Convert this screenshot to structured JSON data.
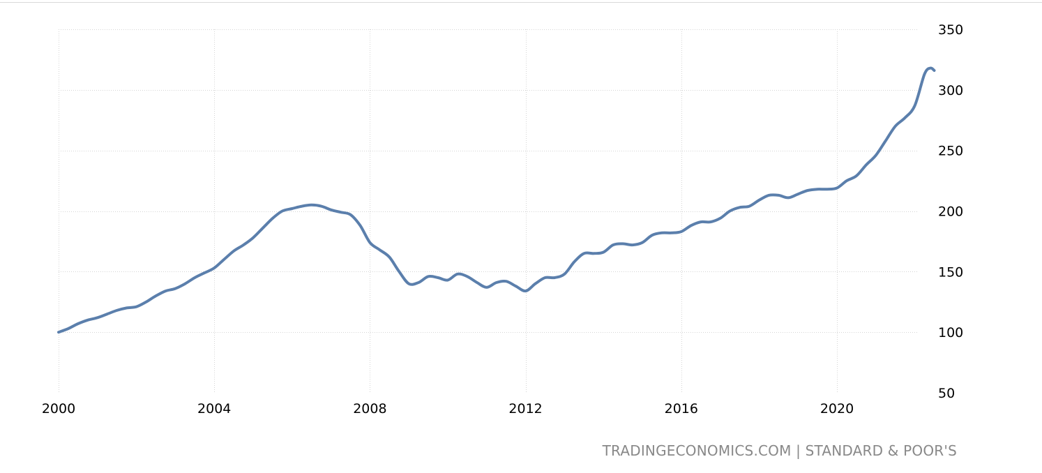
{
  "source": "TRADINGECONOMICS.COM | STANDARD & POOR'S",
  "chart_data": {
    "type": "line",
    "title": "",
    "xlabel": "",
    "ylabel": "",
    "xlim": [
      2000,
      2024.5
    ],
    "ylim": [
      50,
      350
    ],
    "x_ticks": [
      2000,
      2004,
      2008,
      2012,
      2016,
      2020
    ],
    "x_tick_labels": [
      "2000",
      "2004",
      "2008",
      "2012",
      "2016",
      "2020"
    ],
    "y_ticks": [
      50,
      100,
      150,
      200,
      250,
      300,
      350
    ],
    "y_tick_labels": [
      "50",
      "100",
      "150",
      "200",
      "250",
      "300",
      "350"
    ],
    "y_axis_position": "right",
    "grid": true,
    "legend": "none",
    "line_color": "#5b7fac",
    "series": [
      {
        "x": [
          2000.0,
          2000.25,
          2000.5,
          2000.75,
          2001.0,
          2001.25,
          2001.5,
          2001.75,
          2002.0,
          2002.25,
          2002.5,
          2002.75,
          2003.0,
          2003.25,
          2003.5,
          2003.75,
          2004.0,
          2004.25,
          2004.5,
          2004.75,
          2005.0,
          2005.25,
          2005.5,
          2005.75,
          2006.0,
          2006.25,
          2006.5,
          2006.75,
          2007.0,
          2007.25,
          2007.5,
          2007.75,
          2008.0,
          2008.25,
          2008.5,
          2008.75,
          2009.0,
          2009.25,
          2009.5,
          2009.75,
          2010.0,
          2010.25,
          2010.5,
          2010.75,
          2011.0,
          2011.25,
          2011.5,
          2011.75,
          2012.0,
          2012.25,
          2012.5,
          2012.75,
          2013.0,
          2013.25,
          2013.5,
          2013.75,
          2014.0,
          2014.25,
          2014.5,
          2014.75,
          2015.0,
          2015.25,
          2015.5,
          2015.75,
          2016.0,
          2016.25,
          2016.5,
          2016.75,
          2017.0,
          2017.25,
          2017.5,
          2017.75,
          2018.0,
          2018.25,
          2018.5,
          2018.75,
          2019.0,
          2019.25,
          2019.5,
          2019.75,
          2020.0,
          2020.25,
          2020.5,
          2020.75,
          2021.0,
          2021.25,
          2021.5,
          2021.75,
          2022.0,
          2022.25,
          2022.4,
          2022.5
        ],
        "values": [
          100,
          103,
          107,
          110,
          112,
          115,
          118,
          120,
          121,
          125,
          130,
          134,
          136,
          140,
          145,
          149,
          153,
          160,
          167,
          172,
          178,
          186,
          194,
          200,
          202,
          204,
          205,
          204,
          201,
          199,
          197,
          188,
          174,
          168,
          162,
          150,
          140,
          141,
          146,
          145,
          143,
          148,
          146,
          141,
          137,
          141,
          142,
          138,
          134,
          140,
          145,
          145,
          148,
          158,
          165,
          165,
          166,
          172,
          173,
          172,
          174,
          180,
          182,
          182,
          183,
          188,
          191,
          191,
          194,
          200,
          203,
          204,
          209,
          213,
          213,
          211,
          214,
          217,
          218,
          218,
          219,
          225,
          229,
          238,
          246,
          258,
          270,
          277,
          287,
          313,
          318,
          316
        ]
      }
    ]
  }
}
